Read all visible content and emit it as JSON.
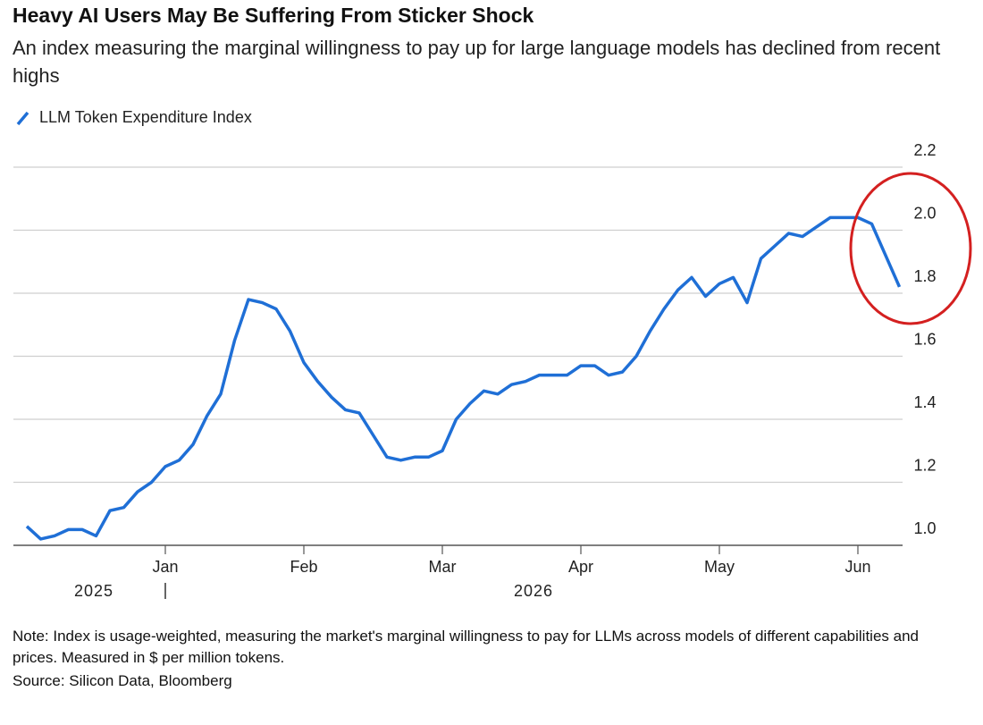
{
  "chart_data": {
    "type": "line",
    "title": "Heavy AI Users May Be Suffering From Sticker Shock",
    "subtitle": "An index measuring the marginal willingness to pay up for large language models has declined from recent highs",
    "categories": [
      null,
      null,
      null,
      null,
      null,
      null,
      null,
      null,
      null,
      null,
      "Jan",
      null,
      null,
      null,
      null,
      null,
      null,
      null,
      null,
      null,
      "Feb",
      null,
      null,
      null,
      null,
      null,
      null,
      null,
      null,
      null,
      "Mar",
      null,
      null,
      null,
      null,
      null,
      null,
      null,
      null,
      null,
      "Apr",
      null,
      null,
      null,
      null,
      null,
      null,
      null,
      null,
      null,
      "May",
      null,
      null,
      null,
      null,
      null,
      null,
      null,
      null,
      null,
      "Jun",
      null,
      null,
      null
    ],
    "year_labels": [
      "2025",
      "2026"
    ],
    "series": [
      {
        "name": "LLM Token Expenditure Index",
        "color": "#1f6fd6",
        "values": [
          1.06,
          1.02,
          1.03,
          1.05,
          1.05,
          1.03,
          1.11,
          1.12,
          1.17,
          1.2,
          1.25,
          1.27,
          1.32,
          1.41,
          1.48,
          1.65,
          1.78,
          1.77,
          1.75,
          1.68,
          1.58,
          1.52,
          1.47,
          1.43,
          1.42,
          1.35,
          1.28,
          1.27,
          1.28,
          1.28,
          1.3,
          1.4,
          1.45,
          1.49,
          1.48,
          1.51,
          1.52,
          1.54,
          1.54,
          1.54,
          1.57,
          1.57,
          1.54,
          1.55,
          1.6,
          1.68,
          1.75,
          1.81,
          1.85,
          1.79,
          1.83,
          1.85,
          1.77,
          1.91,
          1.95,
          1.99,
          1.98,
          2.01,
          2.04,
          2.04,
          2.04,
          2.02,
          1.92,
          1.82
        ]
      }
    ],
    "ylim": [
      1.0,
      2.2
    ],
    "yticks": [
      {
        "value": 1.0,
        "label": "1.0"
      },
      1.2,
      1.4,
      1.6,
      1.8,
      {
        "value": 2.0,
        "label": "2.0"
      },
      2.2
    ],
    "grid": true,
    "note": "Note: Index is usage-weighted, measuring the market's marginal willingness to pay for LLMs across models of different capabilities and prices. Measured in $ per million tokens.",
    "source": "Source: Silicon Data, Bloomberg"
  }
}
